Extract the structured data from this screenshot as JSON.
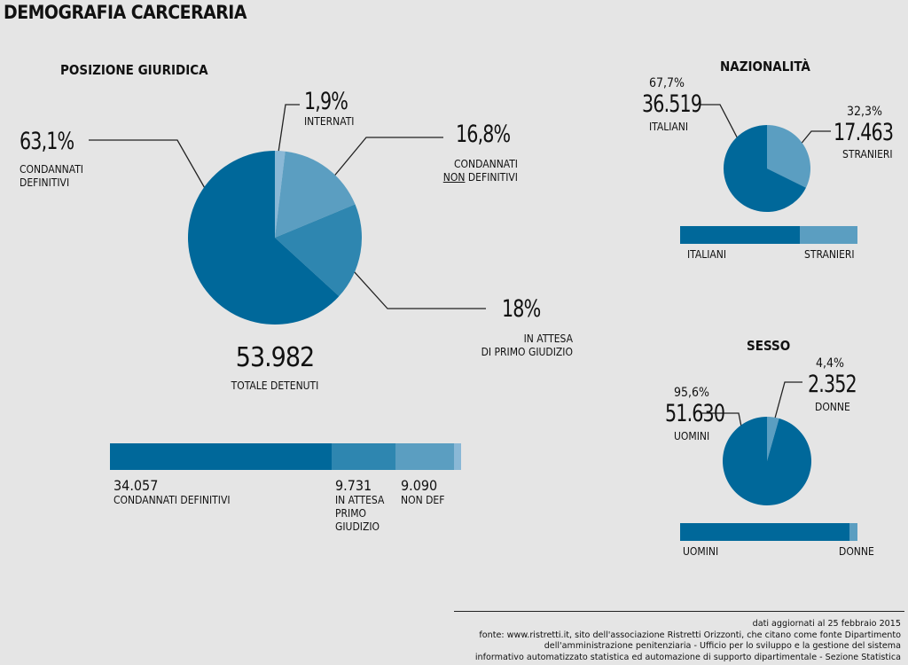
{
  "title": "DEMOGRAFIA CARCERARIA",
  "colors": {
    "dark": "#00689a",
    "mid": "#2e86b0",
    "light": "#5b9ec1",
    "pale": "#8ab8d6"
  },
  "chart_data": [
    {
      "type": "pie",
      "title": "POSIZIONE GIURIDICA",
      "total_value": "53.982",
      "total_label": "TOTALE DETENUTI",
      "slices": [
        {
          "label_lines": [
            "CONDANNATI",
            "DEFINITIVI"
          ],
          "percent_text": "63,1%",
          "percent": 63.1,
          "count": "34.057",
          "color": "#00689a"
        },
        {
          "label_lines": [
            "IN ATTESA",
            "DI PRIMO GIUDIZIO"
          ],
          "percent_text": "18%",
          "percent": 18.0,
          "count": "9.731",
          "color": "#2e86b0"
        },
        {
          "label_lines": [
            "CONDANNATI",
            "NON DEFINITIVI"
          ],
          "percent_text": "16,8%",
          "percent": 16.8,
          "count": "9.090",
          "color": "#5b9ec1"
        },
        {
          "label_lines": [
            "INTERNATI"
          ],
          "percent_text": "1,9%",
          "percent": 1.9,
          "color": "#8ab8d6"
        }
      ],
      "bar_labels": [
        {
          "value": "34.057",
          "lines": [
            "CONDANNATI DEFINITIVI"
          ]
        },
        {
          "value": "9.731",
          "lines": [
            "IN ATTESA",
            "PRIMO",
            "GIUDIZIO"
          ]
        },
        {
          "value": "9.090",
          "lines": [
            "NON DEF"
          ]
        }
      ]
    },
    {
      "type": "pie",
      "title": "NAZIONALITÀ",
      "slices": [
        {
          "label": "ITALIANI",
          "percent_text": "67,7%",
          "percent": 67.7,
          "value": "36.519",
          "color": "#00689a"
        },
        {
          "label": "STRANIERI",
          "percent_text": "32,3%",
          "percent": 32.3,
          "value": "17.463",
          "color": "#5b9ec1"
        }
      ]
    },
    {
      "type": "pie",
      "title": "SESSO",
      "slices": [
        {
          "label": "UOMINI",
          "percent_text": "95,6%",
          "percent": 95.6,
          "value": "51.630",
          "color": "#00689a"
        },
        {
          "label": "DONNE",
          "percent_text": "4,4%",
          "percent": 4.4,
          "value": "2.352",
          "color": "#5b9ec1"
        }
      ]
    }
  ],
  "footer_lines": [
    "dati aggiornati al 25 febbraio 2015",
    "fonte: www.ristretti.it, sito dell'associazione Ristretti Orizzonti, che citano come fonte Dipartimento",
    "dell'amministrazione penitenziaria - Ufficio per lo sviluppo e la gestione del sistema",
    "informativo automatizzato statistica ed automazione di supporto dipartimentale - Sezione Statistica"
  ]
}
